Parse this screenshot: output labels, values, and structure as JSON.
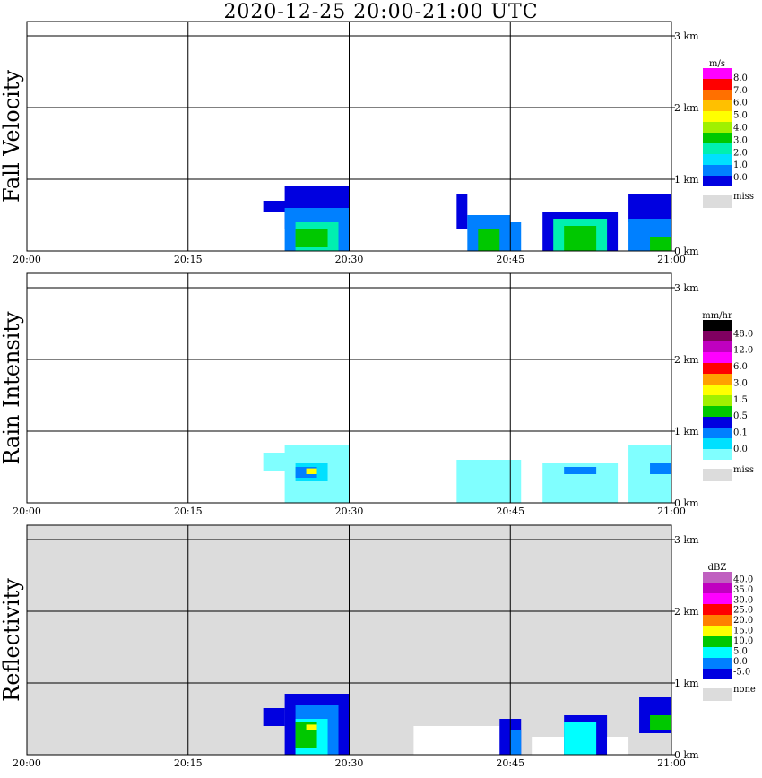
{
  "title": "2020-12-25   20:00-21:00 UTC",
  "chart_data": [
    {
      "type": "heatmap",
      "title": "Fall Velocity",
      "ylabel": "Fall Velocity",
      "x_ticks": [
        "20:00",
        "20:15",
        "20:30",
        "20:45",
        "21:00"
      ],
      "y_ticks": [
        "0 km",
        "1 km",
        "2 km",
        "3 km"
      ],
      "xlim": [
        "20:00",
        "21:00"
      ],
      "ylim": [
        0,
        3.2
      ],
      "grid": true,
      "background": "#ffffff",
      "colorbar": {
        "unit": "m/s",
        "labels": [
          "8.0",
          "7.0",
          "6.0",
          "5.0",
          "4.0",
          "3.0",
          "2.0",
          "1.0",
          "0.0"
        ],
        "colors": [
          "#ff00ff",
          "#ff0000",
          "#ff7000",
          "#ffc000",
          "#ffff00",
          "#a0f000",
          "#00c800",
          "#00f0b0",
          "#00e0ff",
          "#0080ff",
          "#0000e0"
        ],
        "miss_label": "miss",
        "miss_color": "#dcdcdc"
      },
      "echoes": [
        {
          "t0": "20:22",
          "t1": "20:25",
          "h0": 0.55,
          "h1": 0.7,
          "color": "#0000e0"
        },
        {
          "t0": "20:24",
          "t1": "20:30",
          "h0": 0.3,
          "h1": 0.9,
          "color": "#0000e0"
        },
        {
          "t0": "20:24",
          "t1": "20:30",
          "h0": 0.0,
          "h1": 0.6,
          "color": "#0080ff"
        },
        {
          "t0": "20:25",
          "t1": "20:29",
          "h0": 0.0,
          "h1": 0.4,
          "color": "#00f0b0"
        },
        {
          "t0": "20:25",
          "t1": "20:28",
          "h0": 0.05,
          "h1": 0.3,
          "color": "#00c800"
        },
        {
          "t0": "20:40",
          "t1": "20:41",
          "h0": 0.3,
          "h1": 0.8,
          "color": "#0000e0"
        },
        {
          "t0": "20:41",
          "t1": "20:45",
          "h0": 0.0,
          "h1": 0.5,
          "color": "#0080ff"
        },
        {
          "t0": "20:42",
          "t1": "20:44",
          "h0": 0.0,
          "h1": 0.3,
          "color": "#00c800"
        },
        {
          "t0": "20:45",
          "t1": "20:46",
          "h0": 0.0,
          "h1": 0.4,
          "color": "#0080ff"
        },
        {
          "t0": "20:48",
          "t1": "20:55",
          "h0": 0.0,
          "h1": 0.55,
          "color": "#0000e0"
        },
        {
          "t0": "20:49",
          "t1": "20:54",
          "h0": 0.0,
          "h1": 0.45,
          "color": "#00f0b0"
        },
        {
          "t0": "20:50",
          "t1": "20:53",
          "h0": 0.0,
          "h1": 0.35,
          "color": "#00c800"
        },
        {
          "t0": "20:56",
          "t1": "21:00",
          "h0": 0.4,
          "h1": 0.8,
          "color": "#0000e0"
        },
        {
          "t0": "20:56",
          "t1": "21:00",
          "h0": 0.0,
          "h1": 0.45,
          "color": "#0080ff"
        },
        {
          "t0": "20:58",
          "t1": "21:00",
          "h0": 0.0,
          "h1": 0.2,
          "color": "#00c800"
        }
      ]
    },
    {
      "type": "heatmap",
      "title": "Rain Intensity",
      "ylabel": "Rain Intensity",
      "x_ticks": [
        "20:00",
        "20:15",
        "20:30",
        "20:45",
        "21:00"
      ],
      "y_ticks": [
        "0 km",
        "1 km",
        "2 km",
        "3 km"
      ],
      "xlim": [
        "20:00",
        "21:00"
      ],
      "ylim": [
        0,
        3.2
      ],
      "grid": true,
      "background": "#ffffff",
      "colorbar": {
        "unit": "mm/hr",
        "labels": [
          "48.0",
          "12.0",
          "6.0",
          "3.0",
          "1.5",
          "0.5",
          "0.1",
          "0.0"
        ],
        "colors": [
          "#000000",
          "#800060",
          "#c000c0",
          "#ff00ff",
          "#ff0000",
          "#ffa000",
          "#ffff00",
          "#a0f000",
          "#00c800",
          "#0000e0",
          "#0080ff",
          "#00e0ff",
          "#80ffff"
        ],
        "miss_label": "miss",
        "miss_color": "#dcdcdc"
      },
      "echoes": [
        {
          "t0": "20:22",
          "t1": "20:25",
          "h0": 0.45,
          "h1": 0.7,
          "color": "#80ffff"
        },
        {
          "t0": "20:24",
          "t1": "20:30",
          "h0": 0.0,
          "h1": 0.8,
          "color": "#80ffff"
        },
        {
          "t0": "20:25",
          "t1": "20:28",
          "h0": 0.3,
          "h1": 0.55,
          "color": "#00e0ff"
        },
        {
          "t0": "20:25",
          "t1": "20:27",
          "h0": 0.35,
          "h1": 0.5,
          "color": "#0080ff"
        },
        {
          "t0": "20:26",
          "t1": "20:27",
          "h0": 0.4,
          "h1": 0.48,
          "color": "#ffff00"
        },
        {
          "t0": "20:40",
          "t1": "20:46",
          "h0": 0.0,
          "h1": 0.6,
          "color": "#80ffff"
        },
        {
          "t0": "20:48",
          "t1": "20:55",
          "h0": 0.0,
          "h1": 0.55,
          "color": "#80ffff"
        },
        {
          "t0": "20:50",
          "t1": "20:53",
          "h0": 0.4,
          "h1": 0.5,
          "color": "#0080ff"
        },
        {
          "t0": "20:56",
          "t1": "21:00",
          "h0": 0.0,
          "h1": 0.8,
          "color": "#80ffff"
        },
        {
          "t0": "20:58",
          "t1": "21:00",
          "h0": 0.4,
          "h1": 0.55,
          "color": "#0080ff"
        }
      ]
    },
    {
      "type": "heatmap",
      "title": "Reflectivity",
      "ylabel": "Reflectivity",
      "x_ticks": [
        "20:00",
        "20:15",
        "20:30",
        "20:45",
        "21:00"
      ],
      "y_ticks": [
        "0 km",
        "1 km",
        "2 km",
        "3 km"
      ],
      "xlim": [
        "20:00",
        "21:00"
      ],
      "ylim": [
        0,
        3.2
      ],
      "grid": true,
      "background": "#dcdcdc",
      "colorbar": {
        "unit": "dBZ",
        "labels": [
          "40.0",
          "35.0",
          "30.0",
          "25.0",
          "20.0",
          "15.0",
          "10.0",
          "5.0",
          "0.0",
          "-5.0"
        ],
        "colors": [
          "#c060c0",
          "#c000c0",
          "#ff00ff",
          "#ff0000",
          "#ff8000",
          "#ffff00",
          "#00c800",
          "#00ffff",
          "#0080ff",
          "#0000e0"
        ],
        "miss_label": "none",
        "miss_color": "#dcdcdc"
      },
      "echoes": [
        {
          "t0": "20:22",
          "t1": "20:24",
          "h0": 0.4,
          "h1": 0.65,
          "color": "#0000e0"
        },
        {
          "t0": "20:24",
          "t1": "20:30",
          "h0": 0.0,
          "h1": 0.85,
          "color": "#0000e0"
        },
        {
          "t0": "20:25",
          "t1": "20:29",
          "h0": 0.0,
          "h1": 0.7,
          "color": "#0080ff"
        },
        {
          "t0": "20:25",
          "t1": "20:28",
          "h0": 0.0,
          "h1": 0.5,
          "color": "#00ffff"
        },
        {
          "t0": "20:25",
          "t1": "20:27",
          "h0": 0.1,
          "h1": 0.45,
          "color": "#00c800"
        },
        {
          "t0": "20:26",
          "t1": "20:27",
          "h0": 0.35,
          "h1": 0.42,
          "color": "#ffff00"
        },
        {
          "t0": "20:36",
          "t1": "20:44",
          "h0": 0.0,
          "h1": 0.4,
          "color": "#ffffff"
        },
        {
          "t0": "20:44",
          "t1": "20:46",
          "h0": 0.0,
          "h1": 0.5,
          "color": "#0000e0"
        },
        {
          "t0": "20:45",
          "t1": "20:46",
          "h0": 0.0,
          "h1": 0.35,
          "color": "#0080ff"
        },
        {
          "t0": "20:47",
          "t1": "20:50",
          "h0": 0.0,
          "h1": 0.25,
          "color": "#ffffff"
        },
        {
          "t0": "20:50",
          "t1": "20:54",
          "h0": 0.0,
          "h1": 0.55,
          "color": "#0000e0"
        },
        {
          "t0": "20:50",
          "t1": "20:53",
          "h0": 0.0,
          "h1": 0.45,
          "color": "#00ffff"
        },
        {
          "t0": "20:54",
          "t1": "20:56",
          "h0": 0.0,
          "h1": 0.25,
          "color": "#ffffff"
        },
        {
          "t0": "20:57",
          "t1": "21:00",
          "h0": 0.3,
          "h1": 0.8,
          "color": "#0000e0"
        },
        {
          "t0": "20:58",
          "t1": "21:00",
          "h0": 0.35,
          "h1": 0.55,
          "color": "#00c800"
        }
      ]
    }
  ]
}
